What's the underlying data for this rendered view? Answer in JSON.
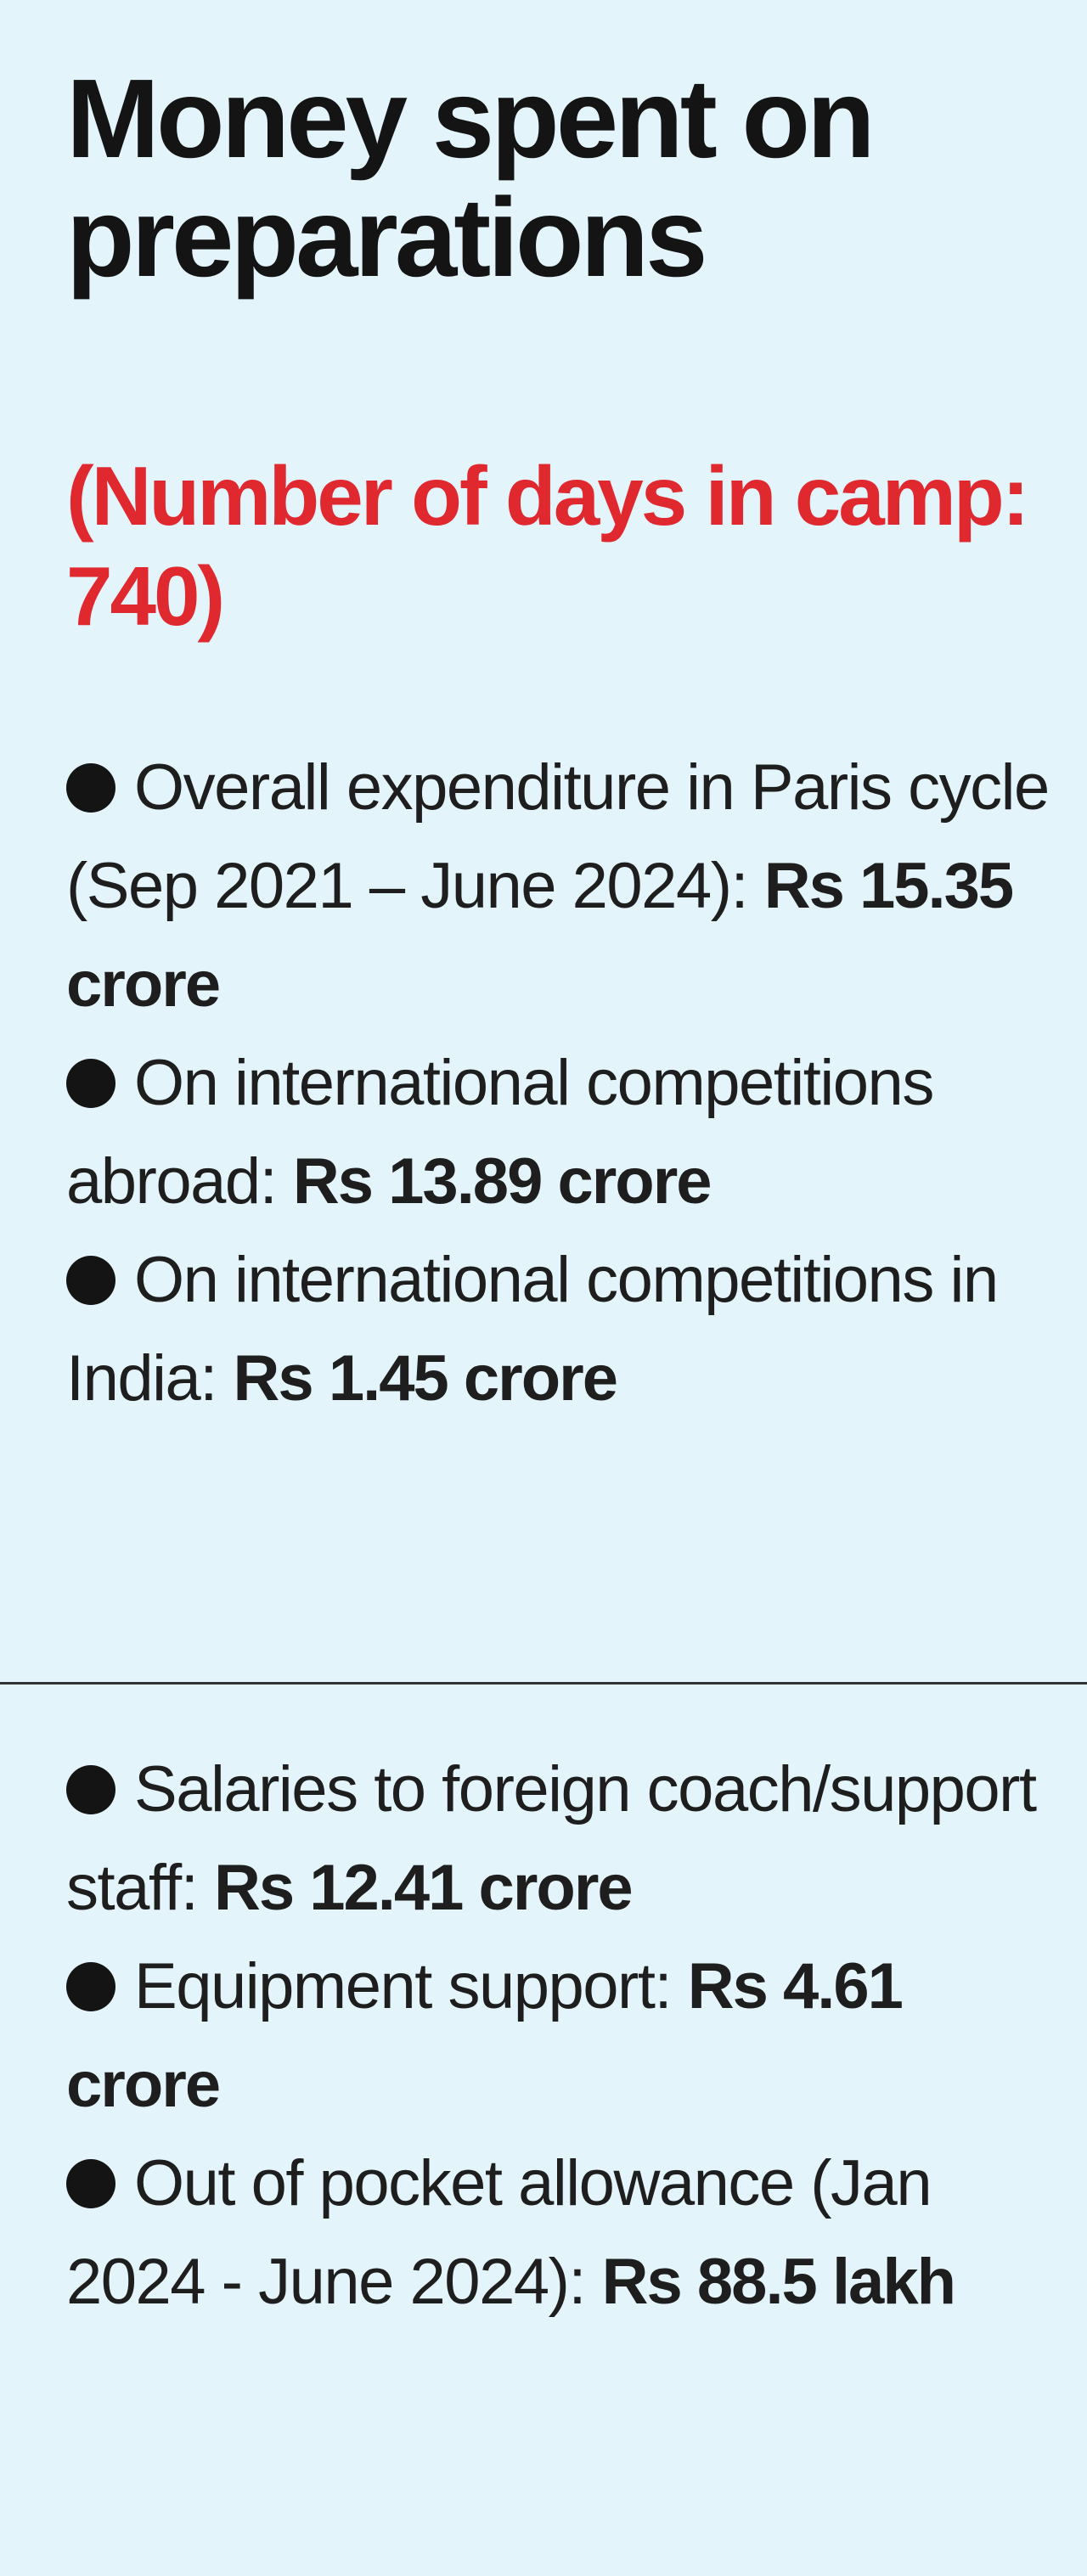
{
  "title": "Money spent on preparations",
  "subtitle": "(Number of days in camp: 740)",
  "group_one": [
    {
      "label": "Overall expenditure in Paris cycle (Sep 2021 – June 2024): ",
      "amount": "Rs 15.35 crore"
    },
    {
      "label": "On international competitions abroad: ",
      "amount": "Rs 13.89 crore"
    },
    {
      "label": "On international competitions in India: ",
      "amount": "Rs 1.45 crore"
    }
  ],
  "group_two": [
    {
      "label": "Salaries to foreign coach/support staff: ",
      "amount": "Rs 12.41 crore"
    },
    {
      "label": "Equipment support: ",
      "amount": "Rs 4.61 crore"
    },
    {
      "label": "Out of pocket allowance (Jan 2024 - June 2024): ",
      "amount": "Rs 88.5 lakh"
    }
  ],
  "colors": {
    "background": "#e3f4fb",
    "title": "#141414",
    "subtitle": "#e0282f",
    "text": "#1e1e1e"
  },
  "icons": {
    "bullet": "filled-circle-bullet-icon"
  }
}
